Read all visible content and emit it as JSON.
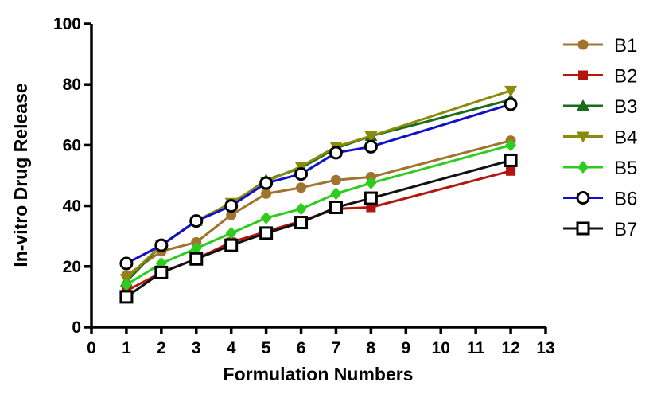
{
  "chart_data": {
    "type": "line",
    "xlabel": "Formulation Numbers",
    "ylabel": "In-vitro Drug Release",
    "xlim": [
      0,
      13
    ],
    "ylim": [
      0,
      100
    ],
    "x_ticks": [
      "0",
      "1",
      "2",
      "3",
      "4",
      "5",
      "6",
      "7",
      "8",
      "9",
      "10",
      "11",
      "12",
      "13"
    ],
    "y_ticks": [
      "0",
      "20",
      "40",
      "60",
      "80",
      "100"
    ],
    "grid": false,
    "legend_position": "right",
    "x": [
      1,
      2,
      3,
      4,
      5,
      6,
      7,
      8,
      12
    ],
    "series": [
      {
        "name": "B1",
        "color": "#A0732E",
        "marker": "circle",
        "values": [
          17,
          25,
          28,
          37,
          44,
          46,
          48.5,
          49.5,
          61.5
        ]
      },
      {
        "name": "B2",
        "color": "#B3150F",
        "marker": "square",
        "values": [
          12,
          18,
          22.5,
          28,
          31.5,
          35,
          39,
          39.5,
          51.5
        ]
      },
      {
        "name": "B3",
        "color": "#1A6B1A",
        "marker": "triangle-up",
        "values": [
          15,
          27,
          35,
          40.5,
          48.5,
          52.5,
          59,
          63,
          75
        ]
      },
      {
        "name": "B4",
        "color": "#8A8A0C",
        "marker": "triangle-down",
        "values": [
          16,
          27,
          35,
          41,
          48,
          53,
          59.5,
          63,
          78
        ]
      },
      {
        "name": "B5",
        "color": "#2ECC1E",
        "marker": "diamond",
        "values": [
          14,
          21,
          26,
          31,
          36,
          39,
          44,
          47.5,
          60
        ]
      },
      {
        "name": "B6",
        "color": "#1010C8",
        "marker": "open-circle",
        "values": [
          21,
          27,
          35,
          40,
          47.5,
          50.5,
          57.5,
          59.5,
          73.5
        ]
      },
      {
        "name": "B7",
        "color": "#111111",
        "marker": "open-square",
        "values": [
          10,
          18,
          22.5,
          27,
          31,
          34.5,
          39.5,
          42.5,
          55
        ]
      }
    ]
  }
}
